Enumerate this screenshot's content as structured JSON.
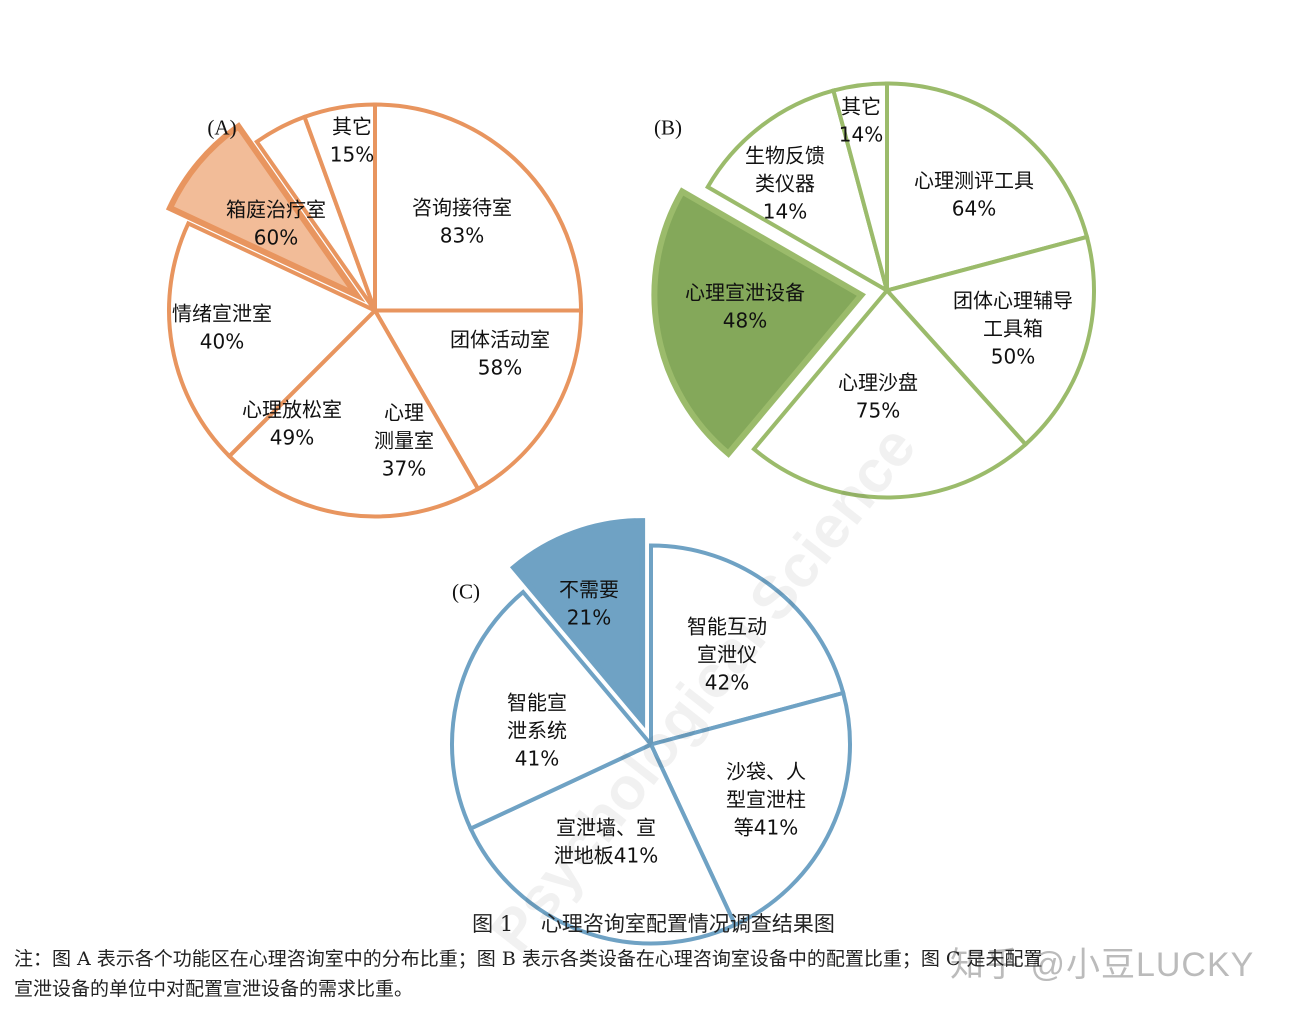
{
  "chart_data": [
    {
      "type": "pie",
      "panel": "(A)",
      "color": "#E8955F",
      "highlight_fill": "#F2BC98",
      "slices": [
        {
          "label": "咨询接待室",
          "value": "83%"
        },
        {
          "label": "团体活动室",
          "value": "58%"
        },
        {
          "label": "心理\n测量室",
          "value": "37%"
        },
        {
          "label": "心理放松室",
          "value": "49%"
        },
        {
          "label": "情绪宣泄室",
          "value": "40%",
          "highlight": true
        },
        {
          "label": "箱庭治疗室",
          "value": "60%"
        },
        {
          "label": "其它",
          "value": "15%"
        }
      ]
    },
    {
      "type": "pie",
      "panel": "(B)",
      "color": "#9BBB6B",
      "highlight_fill": "#84A85A",
      "slices": [
        {
          "label": "心理测评工具",
          "value": "64%"
        },
        {
          "label": "团体心理辅导\n工具箱",
          "value": "50%"
        },
        {
          "label": "心理沙盘",
          "value": "75%"
        },
        {
          "label": "心理宣泄设备",
          "value": "48%",
          "highlight": true
        },
        {
          "label": "生物反馈\n类仪器",
          "value": "14%"
        },
        {
          "label": "其它",
          "value": "14%"
        }
      ]
    },
    {
      "type": "pie",
      "panel": "(C)",
      "color": "#6FA2C4",
      "highlight_fill": "#6FA2C4",
      "slices": [
        {
          "label": "智能互动\n宣泄仪",
          "value": "42%"
        },
        {
          "label": "沙袋、人\n型宣泄柱\n等",
          "value": "41%"
        },
        {
          "label": "宣泄墙、宣\n泄地板",
          "value": "41%"
        },
        {
          "label": "智能宣\n泄系统",
          "value": "41%"
        },
        {
          "label": "不需要",
          "value": "21%",
          "highlight": true
        }
      ]
    }
  ],
  "caption": "图 1　 心理咨询室配置情况调查结果图",
  "note_line1": "注：图 A 表示各个功能区在心理咨询室中的分布比重；图 B 表示各类设备在心理咨询室设备中的配置比重；图 C 是未配置",
  "note_line2": "宣泄设备的单位中对配置宣泄设备的需求比重。",
  "watermark_text": "Psychological Science",
  "credit_text": "知乎 @小豆LUCKY"
}
